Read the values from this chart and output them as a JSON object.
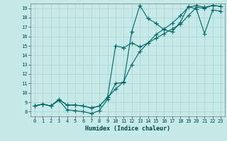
{
  "xlabel": "Humidex (Indice chaleur)",
  "ylabel": "",
  "bg_color": "#c6eaea",
  "grid_color": "#b0d4d4",
  "line_color": "#006666",
  "xlim": [
    -0.5,
    23.5
  ],
  "ylim": [
    7.5,
    19.5
  ],
  "xticks": [
    0,
    1,
    2,
    3,
    4,
    5,
    6,
    7,
    8,
    9,
    10,
    11,
    12,
    13,
    14,
    15,
    16,
    17,
    18,
    19,
    20,
    21,
    22,
    23
  ],
  "yticks": [
    8,
    9,
    10,
    11,
    12,
    13,
    14,
    15,
    16,
    17,
    18,
    19
  ],
  "line1_x": [
    0,
    1,
    2,
    3,
    4,
    5,
    6,
    7,
    8,
    9,
    10,
    11,
    12,
    13,
    14,
    15,
    16,
    17,
    18,
    19,
    20,
    21,
    22,
    23
  ],
  "line1_y": [
    8.6,
    8.8,
    8.6,
    9.2,
    8.2,
    8.1,
    8.0,
    7.8,
    8.1,
    9.3,
    11.0,
    11.1,
    16.5,
    19.3,
    17.9,
    17.4,
    16.7,
    16.5,
    17.5,
    19.2,
    18.9,
    16.3,
    18.8,
    18.7
  ],
  "line2_x": [
    0,
    1,
    2,
    3,
    4,
    5,
    6,
    7,
    8,
    9,
    10,
    11,
    12,
    13,
    14,
    15,
    16,
    17,
    18,
    19,
    20,
    21,
    22,
    23
  ],
  "line2_y": [
    8.6,
    8.8,
    8.6,
    9.3,
    8.7,
    8.7,
    8.6,
    8.4,
    8.6,
    9.5,
    10.4,
    11.2,
    13.0,
    14.4,
    15.3,
    16.2,
    16.8,
    17.4,
    18.2,
    19.1,
    19.3,
    19.1,
    19.3,
    19.2
  ],
  "line3_x": [
    0,
    1,
    2,
    3,
    4,
    5,
    6,
    7,
    8,
    9,
    10,
    11,
    12,
    13,
    14,
    15,
    16,
    17,
    18,
    19,
    20,
    21,
    22,
    23
  ],
  "line3_y": [
    8.6,
    8.8,
    8.6,
    9.3,
    8.7,
    8.7,
    8.6,
    8.4,
    8.6,
    9.5,
    15.0,
    14.8,
    15.3,
    14.9,
    15.3,
    15.8,
    16.3,
    16.8,
    17.3,
    18.2,
    19.1,
    19.0,
    19.3,
    19.2
  ],
  "tick_fontsize": 5.0,
  "xlabel_fontsize": 6.0,
  "marker_size": 2.5,
  "line_width": 0.8
}
